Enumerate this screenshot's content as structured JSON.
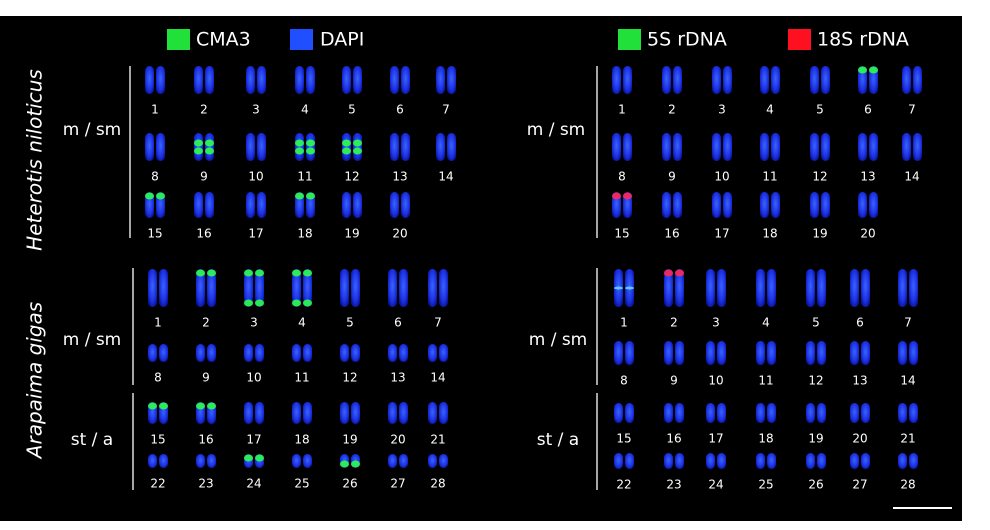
{
  "legend": [
    {
      "label": "CMA3",
      "color": "#22e03a"
    },
    {
      "label": "DAPI",
      "color": "#1f4fff"
    },
    {
      "label": "5S rDNA",
      "color": "#22e03a"
    },
    {
      "label": "18S rDNA",
      "color": "#ff1020"
    }
  ],
  "species": [
    "Heterotis niloticus",
    "Arapaima gigas"
  ],
  "panels": [
    {
      "groups": [
        {
          "label": "m / sm",
          "rows": [
            [
              1,
              2,
              3,
              4,
              5,
              6,
              7
            ],
            [
              8,
              9,
              10,
              11,
              12,
              13,
              14
            ],
            [
              15,
              16,
              17,
              18,
              19,
              20
            ]
          ]
        }
      ]
    },
    {
      "groups": [
        {
          "label": "m / sm",
          "rows": [
            [
              1,
              2,
              3,
              4,
              5,
              6,
              7
            ],
            [
              8,
              9,
              10,
              11,
              12,
              13,
              14
            ],
            [
              15,
              16,
              17,
              18,
              19,
              20
            ]
          ]
        }
      ]
    },
    {
      "groups": [
        {
          "label": "m / sm",
          "rows": [
            [
              1,
              2,
              3,
              4,
              5,
              6,
              7
            ],
            [
              8,
              9,
              10,
              11,
              12,
              13,
              14
            ]
          ]
        },
        {
          "label": "st / a",
          "rows": [
            [
              15,
              16,
              17,
              18,
              19,
              20,
              21
            ],
            [
              22,
              23,
              24,
              25,
              26,
              27,
              28
            ]
          ]
        }
      ]
    },
    {
      "groups": [
        {
          "label": "m / sm",
          "rows": [
            [
              1,
              2,
              3,
              4,
              5,
              6,
              7
            ],
            [
              8,
              9,
              10,
              11,
              12,
              13,
              14
            ]
          ]
        },
        {
          "label": "st / a",
          "rows": [
            [
              15,
              16,
              17,
              18,
              19,
              20,
              21
            ],
            [
              22,
              23,
              24,
              25,
              26,
              27,
              28
            ]
          ]
        }
      ]
    }
  ]
}
